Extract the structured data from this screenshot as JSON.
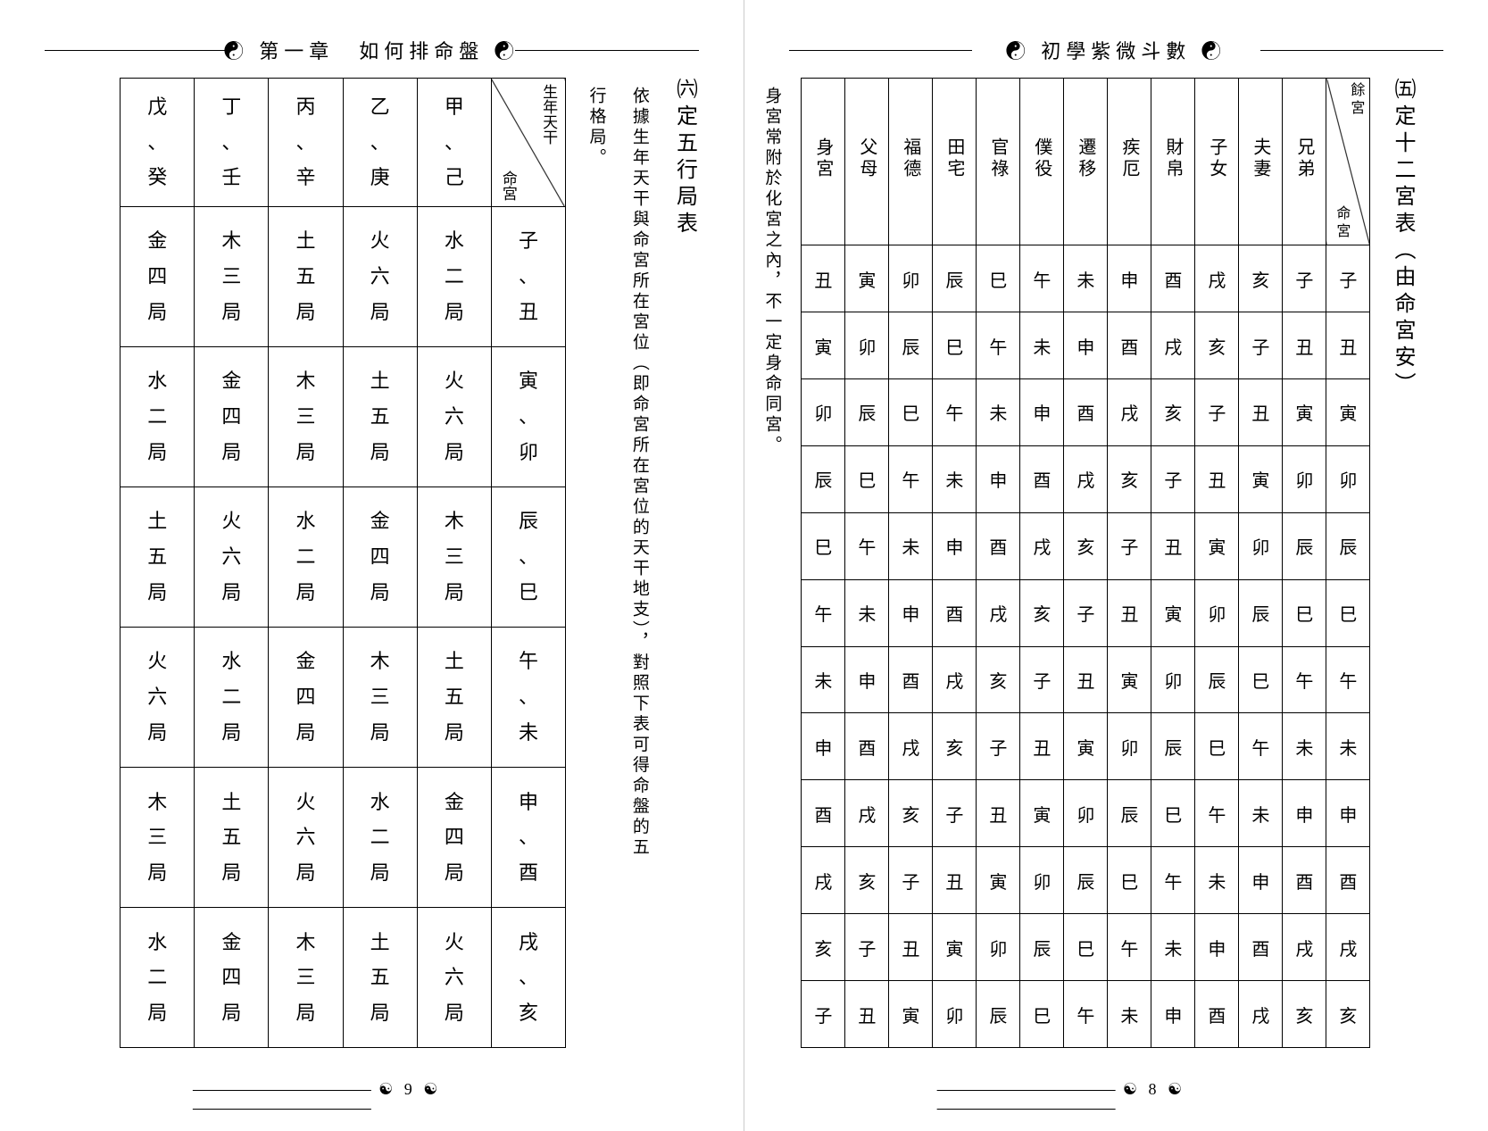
{
  "leftHeader": "☯ 第一章　如何排命盤 ☯",
  "rightHeader": "☯ 初學紫微斗數 ☯",
  "leftPageNum": "☯ 9 ☯",
  "rightPageNum": "☯ 8 ☯",
  "rightTitle": "㈤定十二宮表（由命宮安）",
  "rightNote": "身宮常附於化宮之內，不一定身命同宮。",
  "rightTable": {
    "corner_top": "餘宮",
    "corner_bot": "命宮",
    "headers": [
      "身宮",
      "父母",
      "福德",
      "田宅",
      "官祿",
      "僕役",
      "遷移",
      "疾厄",
      "財帛",
      "子女",
      "夫妻",
      "兄弟"
    ],
    "rows": [
      [
        "丑",
        "寅",
        "卯",
        "辰",
        "巳",
        "午",
        "未",
        "申",
        "酉",
        "戌",
        "亥",
        "子"
      ],
      [
        "寅",
        "卯",
        "辰",
        "巳",
        "午",
        "未",
        "申",
        "酉",
        "戌",
        "亥",
        "子",
        "丑"
      ],
      [
        "卯",
        "辰",
        "巳",
        "午",
        "未",
        "申",
        "酉",
        "戌",
        "亥",
        "子",
        "丑",
        "寅"
      ],
      [
        "辰",
        "巳",
        "午",
        "未",
        "申",
        "酉",
        "戌",
        "亥",
        "子",
        "丑",
        "寅",
        "卯"
      ],
      [
        "巳",
        "午",
        "未",
        "申",
        "酉",
        "戌",
        "亥",
        "子",
        "丑",
        "寅",
        "卯",
        "辰"
      ],
      [
        "午",
        "未",
        "申",
        "酉",
        "戌",
        "亥",
        "子",
        "丑",
        "寅",
        "卯",
        "辰",
        "巳"
      ],
      [
        "未",
        "申",
        "酉",
        "戌",
        "亥",
        "子",
        "丑",
        "寅",
        "卯",
        "辰",
        "巳",
        "午"
      ],
      [
        "申",
        "酉",
        "戌",
        "亥",
        "子",
        "丑",
        "寅",
        "卯",
        "辰",
        "巳",
        "午",
        "未"
      ],
      [
        "酉",
        "戌",
        "亥",
        "子",
        "丑",
        "寅",
        "卯",
        "辰",
        "巳",
        "午",
        "未",
        "申"
      ],
      [
        "戌",
        "亥",
        "子",
        "丑",
        "寅",
        "卯",
        "辰",
        "巳",
        "午",
        "未",
        "申",
        "酉"
      ],
      [
        "亥",
        "子",
        "丑",
        "寅",
        "卯",
        "辰",
        "巳",
        "午",
        "未",
        "申",
        "酉",
        "戌"
      ],
      [
        "子",
        "丑",
        "寅",
        "卯",
        "辰",
        "巳",
        "午",
        "未",
        "申",
        "酉",
        "戌",
        "亥"
      ]
    ]
  },
  "leftTitle": "㈥定五行局表",
  "leftNote1": "依據生年天干與命宮所在宮位（即命宮所在宮位的天干地支），對照下表可得命盤的五",
  "leftNote2": "行格局。",
  "leftTable": {
    "corner_top": "生年天干",
    "corner_bot": "命宮",
    "headers_top": [
      "戊",
      "丁",
      "丙",
      "乙",
      "甲"
    ],
    "headers_bot": [
      "癸",
      "壬",
      "辛",
      "庚",
      "己"
    ],
    "row_labels": [
      [
        "子",
        "丑"
      ],
      [
        "寅",
        "卯"
      ],
      [
        "辰",
        "巳"
      ],
      [
        "午",
        "未"
      ],
      [
        "申",
        "酉"
      ],
      [
        "戌",
        "亥"
      ]
    ],
    "rows": [
      [
        "金四局",
        "木三局",
        "土五局",
        "火六局",
        "水二局"
      ],
      [
        "水二局",
        "金四局",
        "木三局",
        "土五局",
        "火六局"
      ],
      [
        "土五局",
        "火六局",
        "水二局",
        "金四局",
        "木三局"
      ],
      [
        "火六局",
        "水二局",
        "金四局",
        "木三局",
        "土五局"
      ],
      [
        "木三局",
        "土五局",
        "火六局",
        "水二局",
        "金四局"
      ],
      [
        "水二局",
        "金四局",
        "木三局",
        "土五局",
        "火六局"
      ]
    ]
  }
}
